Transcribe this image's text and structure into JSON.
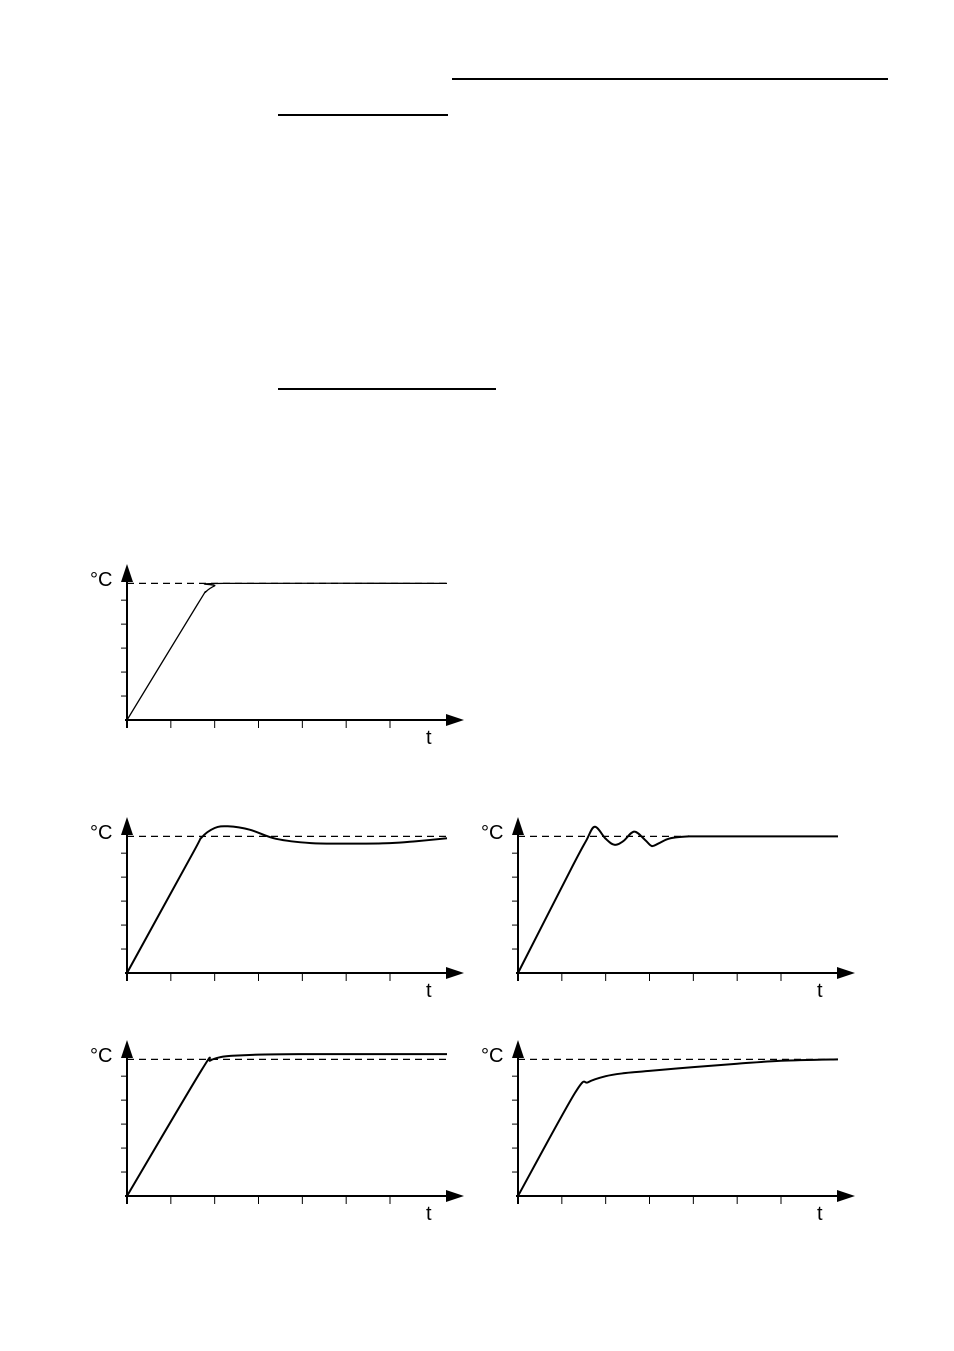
{
  "page": {
    "rules": [
      "header-rule",
      "subheading-rule-1",
      "subheading-rule-2"
    ]
  },
  "chart_data": [
    {
      "id": "chart-1",
      "type": "line",
      "ylabel": "°C",
      "xlabel": "t",
      "xlim": [
        0,
        7.3
      ],
      "ylim": [
        0,
        5.8
      ],
      "setpoint": 5.7,
      "grid": false,
      "x_ticks": [
        1,
        2,
        3,
        4,
        5,
        6
      ],
      "y_ticks": [
        1,
        2,
        3,
        4,
        5
      ],
      "series": [
        {
          "x": [
            0,
            1.6,
            1.8,
            2.0,
            2.2,
            7.3
          ],
          "y": [
            0,
            4.8,
            5.35,
            5.6,
            5.7,
            5.7
          ]
        }
      ]
    },
    {
      "id": "chart-2",
      "type": "line",
      "ylabel": "°C",
      "xlabel": "t",
      "xlim": [
        0,
        7.3
      ],
      "ylim": [
        0,
        5.8
      ],
      "setpoint": 5.7,
      "grid": false,
      "x_ticks": [
        1,
        2,
        3,
        4,
        5,
        6
      ],
      "y_ticks": [
        1,
        2,
        3,
        4,
        5
      ],
      "series": [
        {
          "x": [
            0,
            1.5,
            1.7,
            2.0,
            2.3,
            2.8,
            3.4,
            4.2,
            5.0,
            6.0,
            6.6,
            7.3
          ],
          "y": [
            0,
            5.0,
            5.65,
            6.05,
            6.12,
            5.98,
            5.6,
            5.42,
            5.4,
            5.42,
            5.5,
            5.62
          ]
        }
      ]
    },
    {
      "id": "chart-3",
      "type": "line",
      "ylabel": "°C",
      "xlabel": "t",
      "xlim": [
        0,
        7.3
      ],
      "ylim": [
        0,
        5.8
      ],
      "setpoint": 5.7,
      "grid": false,
      "x_ticks": [
        1,
        2,
        3,
        4,
        5,
        6
      ],
      "y_ticks": [
        1,
        2,
        3,
        4,
        5
      ],
      "series": [
        {
          "x": [
            0,
            1.2,
            1.55,
            1.75,
            2.0,
            2.2,
            2.4,
            2.65,
            2.9,
            3.05,
            3.2,
            3.4,
            3.6,
            3.9,
            4.2,
            7.3
          ],
          "y": [
            0,
            4.3,
            5.5,
            6.1,
            5.6,
            5.35,
            5.5,
            5.9,
            5.55,
            5.3,
            5.4,
            5.58,
            5.66,
            5.7,
            5.7,
            5.7
          ]
        }
      ]
    },
    {
      "id": "chart-4",
      "type": "line",
      "ylabel": "°C",
      "xlabel": "t",
      "xlim": [
        0,
        7.3
      ],
      "ylim": [
        0,
        5.8
      ],
      "setpoint": 5.7,
      "grid": false,
      "x_ticks": [
        1,
        2,
        3,
        4,
        5,
        6
      ],
      "y_ticks": [
        1,
        2,
        3,
        4,
        5
      ],
      "series": [
        {
          "x": [
            0,
            1.7,
            1.9,
            2.15,
            2.4,
            3.0,
            4.0,
            5.0,
            6.0,
            7.3
          ],
          "y": [
            0,
            5.25,
            5.65,
            5.8,
            5.85,
            5.9,
            5.92,
            5.92,
            5.92,
            5.92
          ]
        }
      ]
    },
    {
      "id": "chart-5",
      "type": "line",
      "ylabel": "°C",
      "xlabel": "t",
      "xlim": [
        0,
        7.3
      ],
      "ylim": [
        0,
        5.8
      ],
      "setpoint": 5.7,
      "grid": false,
      "x_ticks": [
        1,
        2,
        3,
        4,
        5,
        6
      ],
      "y_ticks": [
        1,
        2,
        3,
        4,
        5
      ],
      "series": [
        {
          "x": [
            0,
            1.3,
            1.6,
            2.0,
            2.4,
            3.0,
            4.0,
            5.0,
            6.0,
            7.3
          ],
          "y": [
            0,
            4.3,
            4.75,
            5.0,
            5.12,
            5.22,
            5.38,
            5.52,
            5.64,
            5.7
          ]
        }
      ]
    }
  ]
}
